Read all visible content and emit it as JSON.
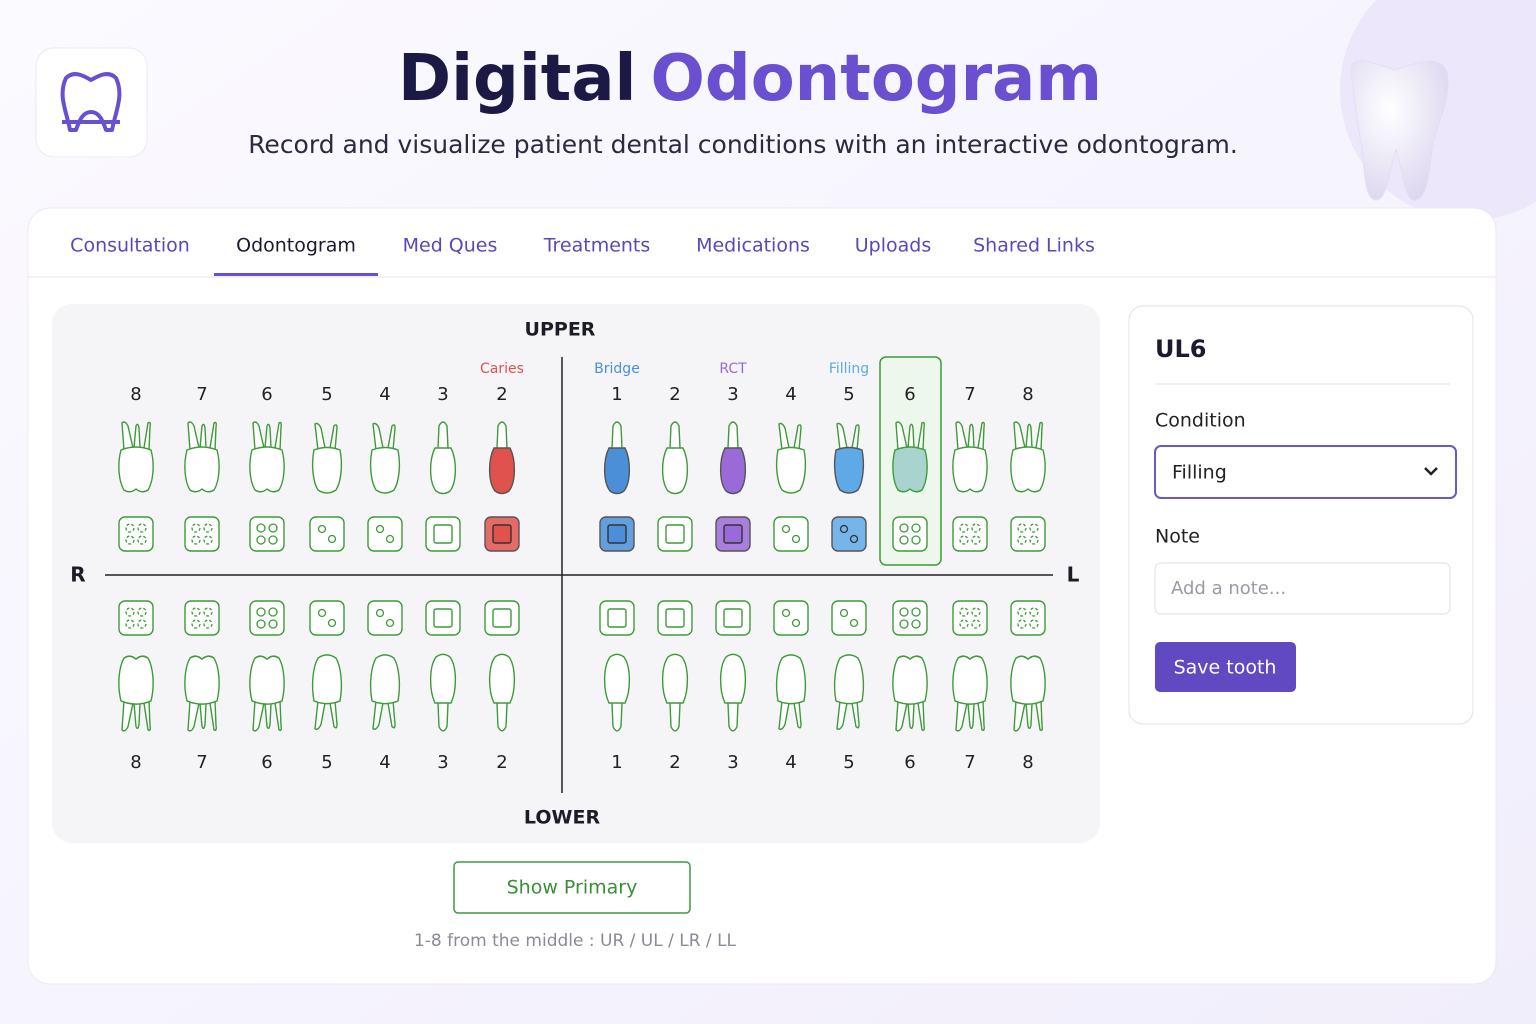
{
  "header": {
    "title_1": "Digital",
    "title_2": "Odontogram",
    "subtitle": "Record and visualize patient dental conditions with an interactive odontogram."
  },
  "tabs": [
    {
      "label": "Consultation"
    },
    {
      "label": "Odontogram",
      "active": true
    },
    {
      "label": "Med Ques"
    },
    {
      "label": "Treatments"
    },
    {
      "label": "Medications"
    },
    {
      "label": "Uploads"
    },
    {
      "label": "Shared Links"
    }
  ],
  "odontogram": {
    "upper_label": "UPPER",
    "lower_label": "LOWER",
    "right_label": "R",
    "left_label": "L",
    "upper_right": [
      {
        "number": 8
      },
      {
        "number": 7
      },
      {
        "number": 6
      },
      {
        "number": 5
      },
      {
        "number": 4
      },
      {
        "number": 3
      },
      {
        "number": 2,
        "condition": "Caries",
        "color": "#e0524d"
      }
    ],
    "upper_left": [
      {
        "number": 1,
        "condition": "Bridge",
        "color": "#4a8fd8"
      },
      {
        "number": 2
      },
      {
        "number": 3,
        "condition": "RCT",
        "color": "#9a6ad8"
      },
      {
        "number": 4
      },
      {
        "number": 5,
        "condition": "Filling",
        "color": "#5ea9e6"
      },
      {
        "number": 6,
        "selected": true
      },
      {
        "number": 7
      },
      {
        "number": 8
      }
    ],
    "lower_right": [
      {
        "number": 8
      },
      {
        "number": 7
      },
      {
        "number": 6
      },
      {
        "number": 5
      },
      {
        "number": 4
      },
      {
        "number": 3
      },
      {
        "number": 2
      }
    ],
    "lower_left": [
      {
        "number": 1
      },
      {
        "number": 2
      },
      {
        "number": 3
      },
      {
        "number": 4
      },
      {
        "number": 5
      },
      {
        "number": 6
      },
      {
        "number": 7
      },
      {
        "number": 8
      }
    ]
  },
  "panel": {
    "title": "UL6",
    "condition_label": "Condition",
    "condition_value": "Filling",
    "note_label": "Note",
    "note_placeholder": "Add a note...",
    "save_button": "Save tooth"
  },
  "footer": {
    "show_primary": "Show Primary",
    "hint": "1-8 from the middle : UR / UL / LR / LL"
  }
}
